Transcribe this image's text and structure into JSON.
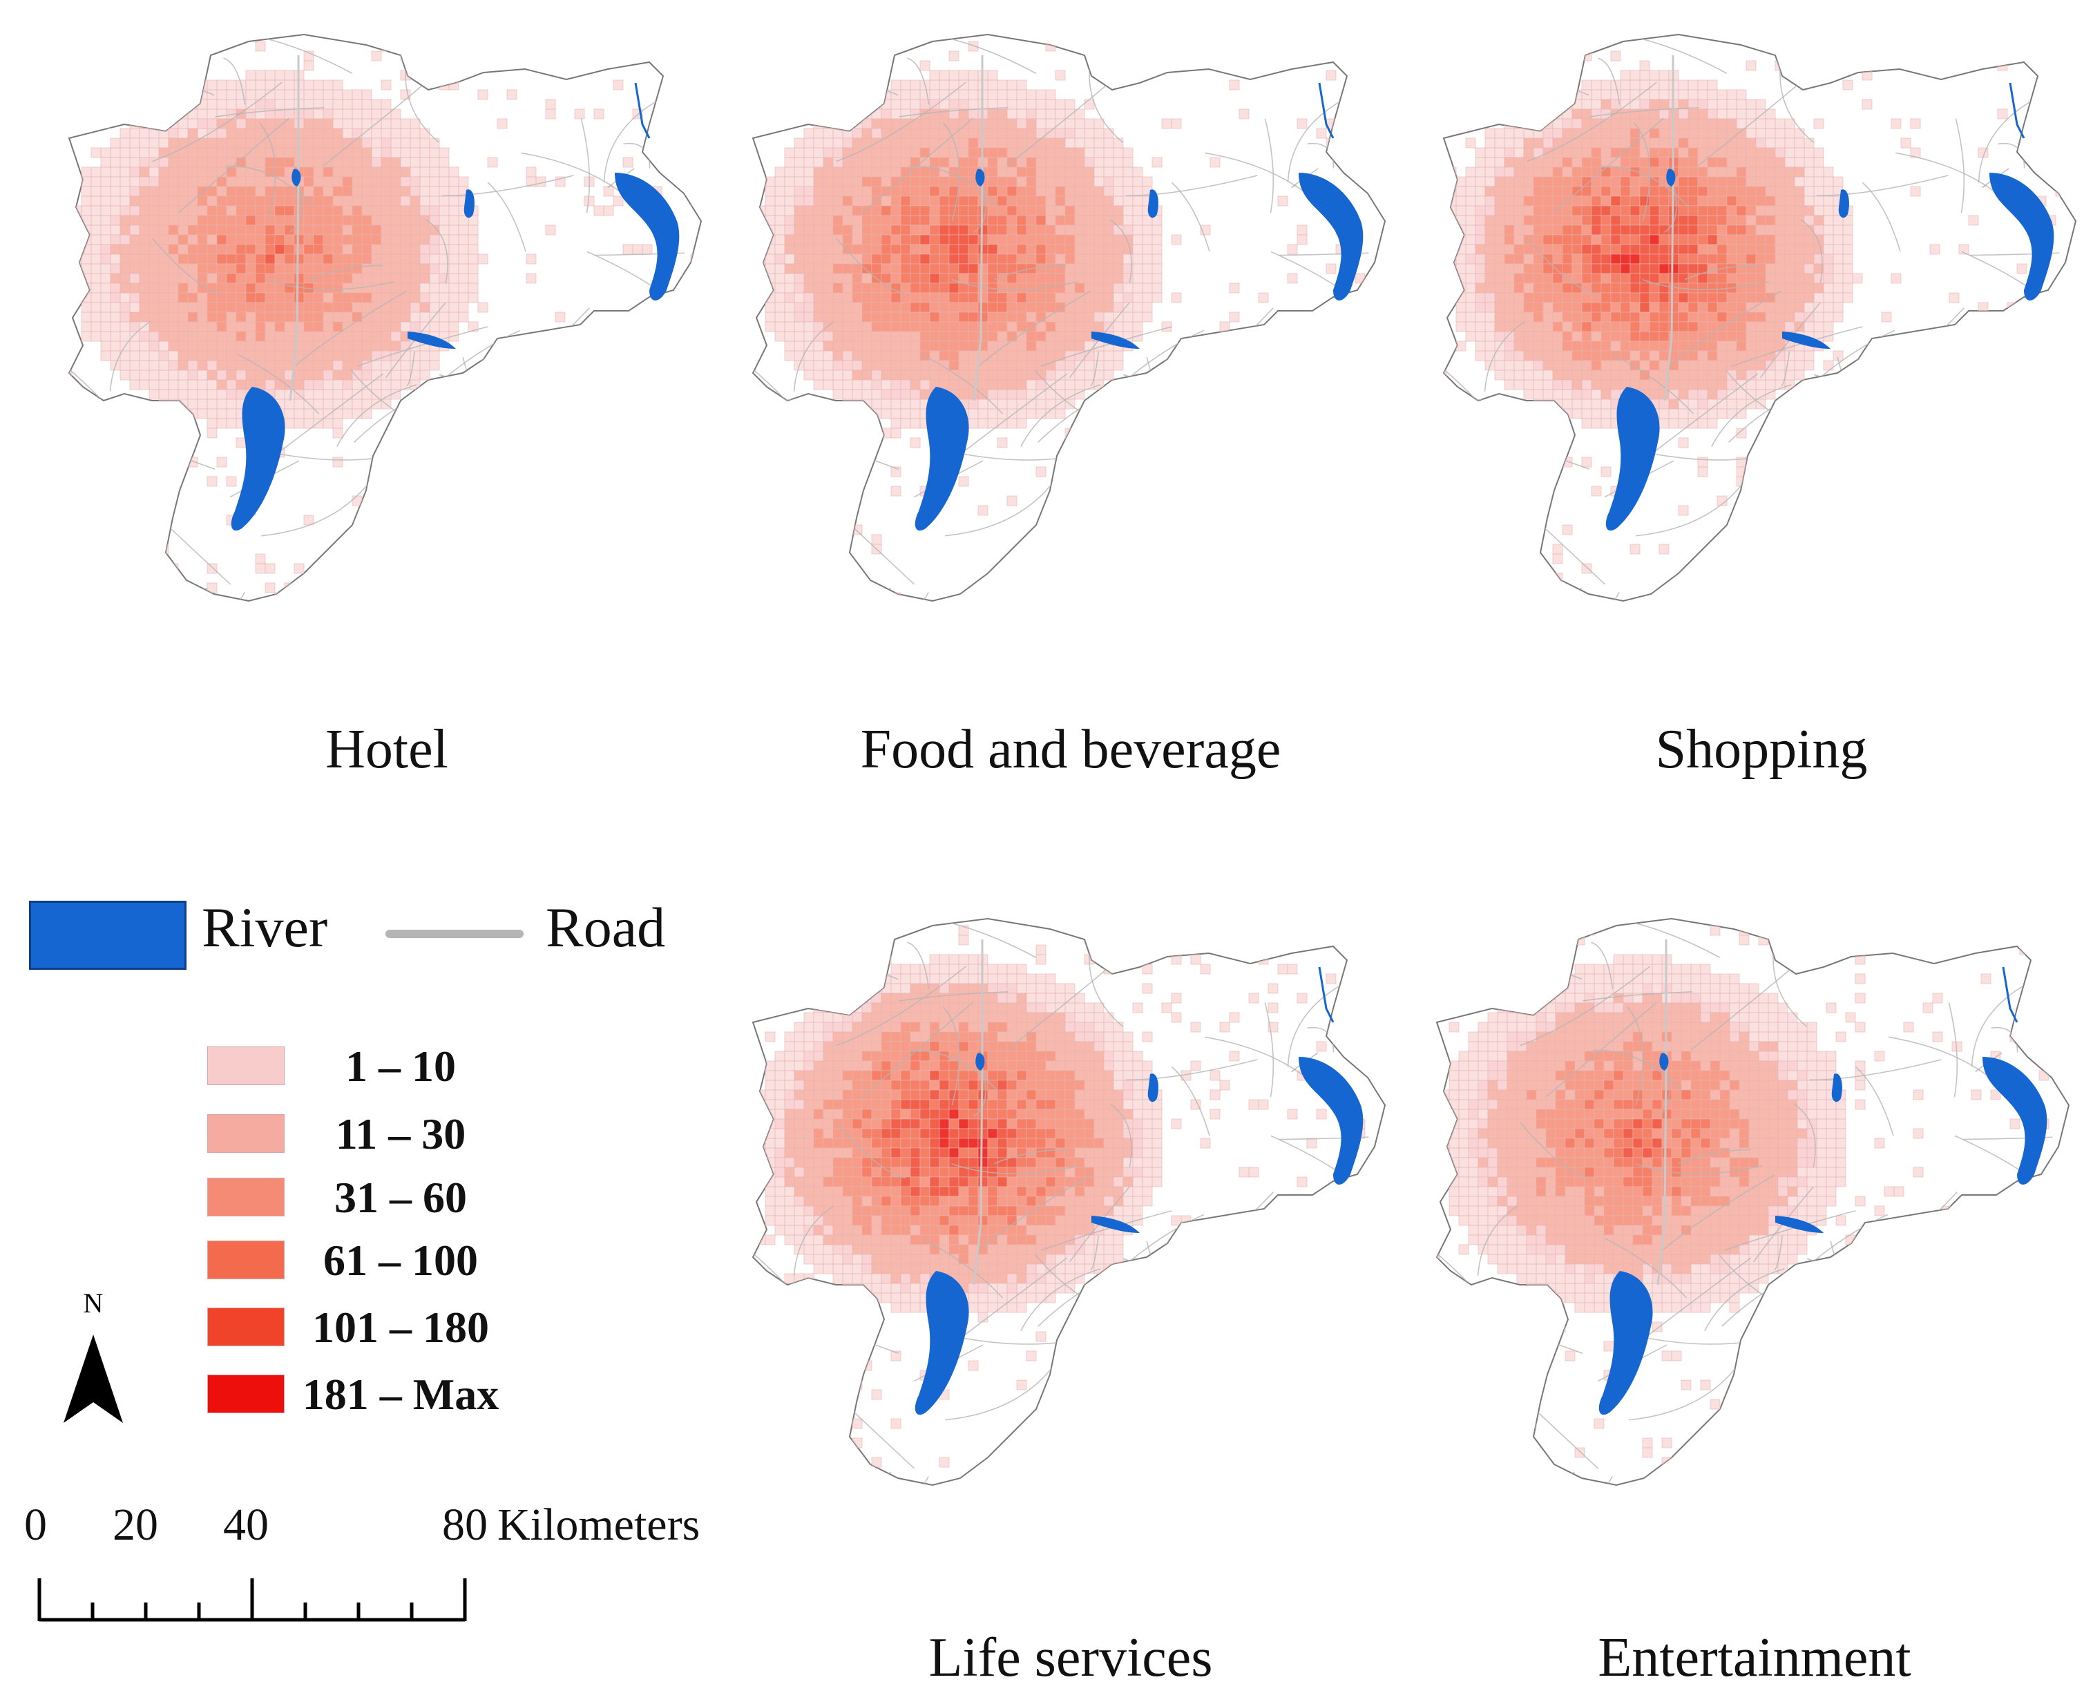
{
  "panels": [
    {
      "title": "Hotel",
      "intensity": 1.0
    },
    {
      "title": "Food and beverage",
      "intensity": 1.25
    },
    {
      "title": "Shopping",
      "intensity": 1.45
    },
    {
      "title": "Life services",
      "intensity": 1.5
    },
    {
      "title": "Entertainment",
      "intensity": 1.1
    }
  ],
  "legend": {
    "river_label": "River",
    "road_label": "Road",
    "classes": [
      {
        "label": "1 – 10",
        "color": "#f9cccc"
      },
      {
        "label": "11 – 30",
        "color": "#f6aba0"
      },
      {
        "label": "31 – 60",
        "color": "#f58b74"
      },
      {
        "label": "61 – 100",
        "color": "#f36a4c"
      },
      {
        "label": "101 – 180",
        "color": "#f0432a"
      },
      {
        "label": "181 – Max",
        "color": "#ec0f0b"
      }
    ]
  },
  "north_arrow": {
    "label": "N"
  },
  "scale_bar": {
    "ticks": [
      "0",
      "20",
      "40",
      "80"
    ],
    "unit": "Kilometers"
  },
  "colors": {
    "river": "#1566d1",
    "road": "#b5b5b5",
    "boundary": "#777777"
  }
}
